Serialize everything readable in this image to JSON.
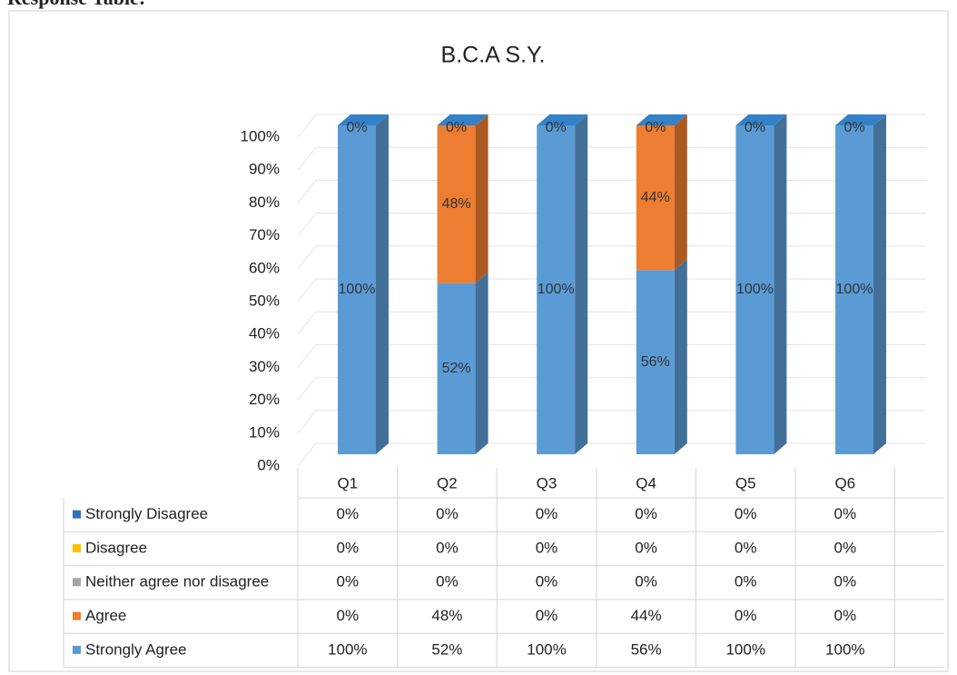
{
  "heading": "Response Table:",
  "chart_data": {
    "type": "bar3d_stacked",
    "title": "B.C.A S.Y.",
    "categories": [
      "Q1",
      "Q2",
      "Q3",
      "Q4",
      "Q5",
      "Q6"
    ],
    "series": [
      {
        "name": "Strongly Disagree",
        "color": "#2e75b6",
        "values": [
          0,
          0,
          0,
          0,
          0,
          0
        ],
        "value_labels": [
          "0%",
          "0%",
          "0%",
          "0%",
          "0%",
          "0%"
        ]
      },
      {
        "name": "Disagree",
        "color": "#ffc000",
        "values": [
          0,
          0,
          0,
          0,
          0,
          0
        ],
        "value_labels": [
          "0%",
          "0%",
          "0%",
          "0%",
          "0%",
          "0%"
        ]
      },
      {
        "name": "Neither agree nor disagree",
        "color": "#a5a5a5",
        "values": [
          0,
          0,
          0,
          0,
          0,
          0
        ],
        "value_labels": [
          "0%",
          "0%",
          "0%",
          "0%",
          "0%",
          "0%"
        ]
      },
      {
        "name": "Agree",
        "color": "#ed7d31",
        "values": [
          0,
          48,
          0,
          44,
          0,
          0
        ],
        "value_labels": [
          "0%",
          "48%",
          "0%",
          "44%",
          "0%",
          "0%"
        ]
      },
      {
        "name": "Strongly Agree",
        "color": "#5b9bd5",
        "values": [
          100,
          52,
          100,
          56,
          100,
          100
        ],
        "value_labels": [
          "100%",
          "52%",
          "100%",
          "56%",
          "100%",
          "100%"
        ]
      }
    ],
    "ylim": [
      0,
      100
    ],
    "yticks": [
      {
        "value": 0,
        "label": "0%"
      },
      {
        "value": 10,
        "label": "10%"
      },
      {
        "value": 20,
        "label": "20%"
      },
      {
        "value": 30,
        "label": "30%"
      },
      {
        "value": 40,
        "label": "40%"
      },
      {
        "value": 50,
        "label": "50%"
      },
      {
        "value": 60,
        "label": "60%"
      },
      {
        "value": 70,
        "label": "70%"
      },
      {
        "value": 80,
        "label": "80%"
      },
      {
        "value": 90,
        "label": "90%"
      },
      {
        "value": 100,
        "label": "100%"
      }
    ],
    "grid": true,
    "data_table": true
  }
}
